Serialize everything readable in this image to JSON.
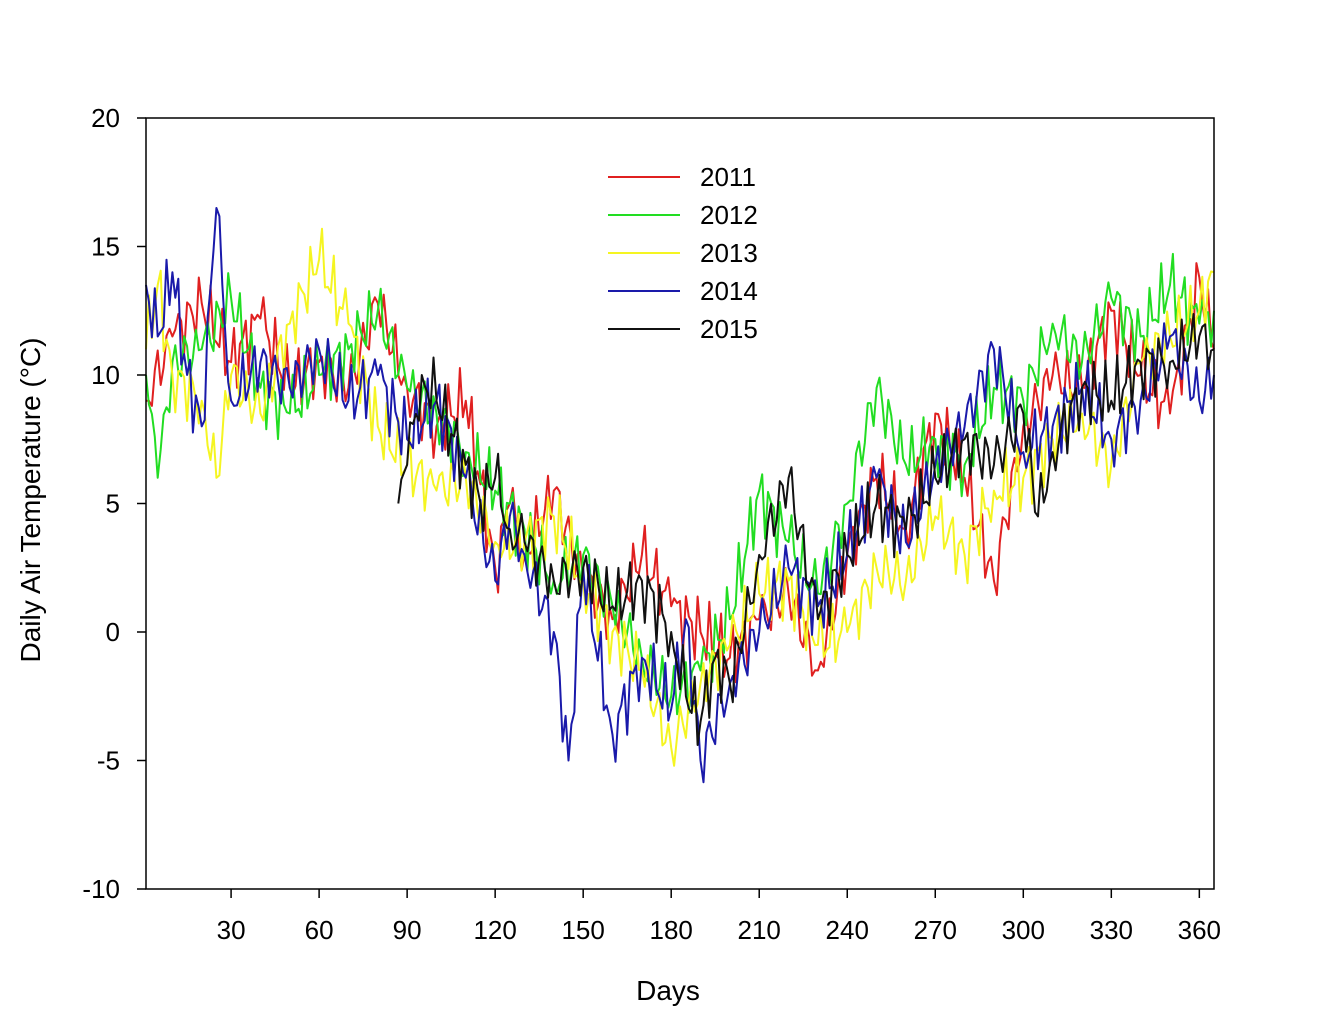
{
  "chart_data": {
    "type": "line",
    "xlabel": "Days",
    "ylabel": "Daily Air Temperature (°C)",
    "xlim": [
      1,
      365
    ],
    "ylim": [
      -10,
      20
    ],
    "xticks": [
      30,
      60,
      90,
      120,
      150,
      180,
      210,
      240,
      270,
      300,
      330,
      360
    ],
    "yticks": [
      -10,
      -5,
      0,
      5,
      10,
      15,
      20
    ],
    "legend_position": "top-center",
    "grid": false,
    "series": [
      {
        "name": "2011",
        "color": "#e02020",
        "x": [
          1,
          10,
          20,
          30,
          40,
          50,
          60,
          70,
          80,
          90,
          100,
          110,
          120,
          125,
          130,
          140,
          150,
          160,
          170,
          180,
          190,
          200,
          210,
          220,
          230,
          240,
          250,
          260,
          270,
          280,
          290,
          300,
          310,
          320,
          330,
          340,
          350,
          360,
          365
        ],
        "values": [
          9.0,
          11.5,
          12.8,
          10.5,
          12.2,
          9.5,
          10.5,
          9.5,
          12.8,
          9.5,
          8.0,
          9.0,
          2.5,
          5.0,
          3.0,
          5.5,
          2.0,
          0.5,
          3.0,
          1.0,
          0.0,
          -1.0,
          0.5,
          1.5,
          -1.5,
          3.0,
          6.0,
          4.0,
          8.5,
          6.0,
          2.0,
          8.0,
          10.0,
          9.5,
          12.5,
          10.0,
          8.5,
          13.8,
          11.0
        ]
      },
      {
        "name": "2012",
        "color": "#22dd22",
        "x": [
          1,
          5,
          10,
          20,
          30,
          40,
          50,
          60,
          70,
          80,
          90,
          100,
          110,
          120,
          130,
          140,
          150,
          160,
          170,
          180,
          190,
          200,
          210,
          220,
          230,
          240,
          250,
          260,
          270,
          280,
          290,
          300,
          310,
          320,
          330,
          340,
          350,
          360,
          365
        ],
        "values": [
          10.0,
          6.0,
          10.5,
          11.0,
          13.0,
          9.5,
          8.5,
          10.0,
          11.0,
          12.5,
          9.5,
          8.5,
          7.0,
          5.5,
          4.0,
          2.0,
          3.0,
          1.0,
          -1.0,
          -2.5,
          -1.5,
          0.5,
          5.5,
          3.5,
          1.5,
          5.0,
          9.5,
          6.5,
          7.5,
          6.5,
          9.5,
          9.0,
          12.0,
          10.5,
          13.0,
          11.5,
          13.5,
          12.0,
          12.5
        ]
      },
      {
        "name": "2013",
        "color": "#f5f522",
        "x": [
          1,
          5,
          10,
          20,
          25,
          30,
          40,
          50,
          60,
          70,
          80,
          90,
          100,
          110,
          120,
          130,
          140,
          150,
          160,
          170,
          180,
          190,
          200,
          210,
          220,
          230,
          240,
          250,
          260,
          270,
          280,
          290,
          300,
          310,
          320,
          330,
          340,
          350,
          360,
          365
        ],
        "values": [
          11.0,
          13.5,
          10.0,
          9.0,
          6.0,
          10.0,
          8.5,
          12.0,
          14.5,
          12.0,
          8.0,
          6.5,
          5.5,
          6.0,
          3.5,
          3.5,
          4.5,
          2.0,
          0.0,
          -1.5,
          -4.5,
          -2.0,
          -0.5,
          1.5,
          2.0,
          -0.5,
          0.0,
          2.5,
          2.0,
          4.5,
          3.0,
          5.5,
          6.0,
          7.5,
          8.5,
          6.5,
          10.5,
          11.5,
          12.5,
          14.0
        ]
      },
      {
        "name": "2014",
        "color": "#1a1aaa",
        "x": [
          1,
          5,
          10,
          15,
          20,
          25,
          30,
          40,
          50,
          60,
          70,
          80,
          90,
          100,
          110,
          120,
          125,
          130,
          140,
          145,
          150,
          160,
          170,
          180,
          185,
          190,
          200,
          210,
          220,
          230,
          240,
          250,
          260,
          270,
          280,
          290,
          300,
          310,
          320,
          330,
          340,
          350,
          360,
          365
        ],
        "values": [
          13.5,
          11.5,
          14.0,
          10.0,
          8.0,
          16.5,
          9.0,
          10.5,
          9.5,
          11.0,
          9.0,
          10.0,
          7.5,
          9.0,
          6.0,
          2.0,
          4.5,
          3.0,
          0.0,
          -5.0,
          2.5,
          -4.0,
          -1.0,
          -3.0,
          0.5,
          -5.0,
          -2.0,
          0.0,
          2.5,
          1.0,
          3.0,
          6.0,
          3.5,
          6.5,
          8.0,
          11.0,
          7.0,
          8.0,
          9.5,
          7.5,
          9.0,
          11.5,
          9.0,
          10.0
        ]
      },
      {
        "name": "2015",
        "color": "#111111",
        "x": [
          87,
          90,
          95,
          100,
          110,
          115,
          120,
          125,
          130,
          140,
          150,
          160,
          170,
          180,
          185,
          190,
          195,
          200,
          205,
          210,
          220,
          230,
          240,
          250,
          260,
          270,
          280,
          290,
          300,
          305,
          310,
          320,
          330,
          340,
          350,
          360,
          365
        ],
        "values": [
          5.0,
          6.5,
          10.0,
          9.0,
          6.5,
          5.0,
          6.0,
          4.0,
          3.5,
          2.0,
          2.5,
          1.0,
          2.0,
          0.0,
          -2.5,
          -3.5,
          -1.0,
          -2.0,
          0.0,
          3.0,
          6.0,
          0.5,
          3.0,
          5.0,
          4.0,
          6.0,
          7.5,
          6.5,
          8.5,
          4.5,
          7.0,
          9.5,
          9.0,
          10.5,
          10.5,
          11.5,
          11.0
        ]
      }
    ]
  }
}
